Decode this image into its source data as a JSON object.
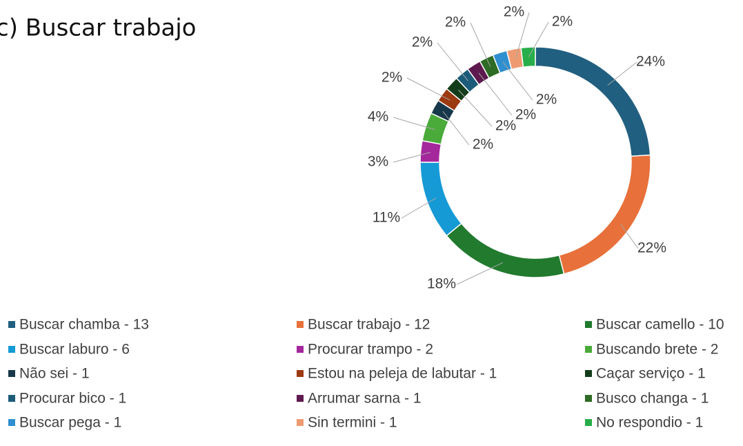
{
  "chart_data": {
    "type": "pie",
    "title": "c) Buscar trabajo",
    "categories": [
      "Buscar chamba - 13",
      "Buscar trabajo - 12",
      "Buscar camello - 10",
      "Buscar laburo - 6",
      "Procurar trampo - 2",
      "Buscando brete - 2",
      "Não sei - 1",
      "Estou na peleja de labutar - 1",
      "Caçar serviço - 1",
      "Procurar bico - 1",
      "Arrumar sarna - 1",
      "Busco changa - 1",
      "Buscar pega - 1",
      "Sin termini - 1",
      "No respondio - 1"
    ],
    "values": [
      24,
      22,
      18,
      11,
      3,
      4,
      2,
      2,
      2,
      2,
      2,
      2,
      2,
      2,
      2
    ],
    "value_labels": [
      "24%",
      "22%",
      "18%",
      "11%",
      "3%",
      "4%",
      "2%",
      "2%",
      "2%",
      "2%",
      "2%",
      "2%",
      "2%",
      "2%",
      "2%"
    ],
    "colors": [
      "#215f80",
      "#e8703a",
      "#217a2e",
      "#159ad6",
      "#a4279c",
      "#4aaa3a",
      "#17384a",
      "#9c3a12",
      "#133d1a",
      "#1c5c7a",
      "#5e1a4f",
      "#2e6b24",
      "#2f8fcf",
      "#ee9b72",
      "#27ae4a"
    ],
    "donut": true,
    "legend": "bottom"
  }
}
